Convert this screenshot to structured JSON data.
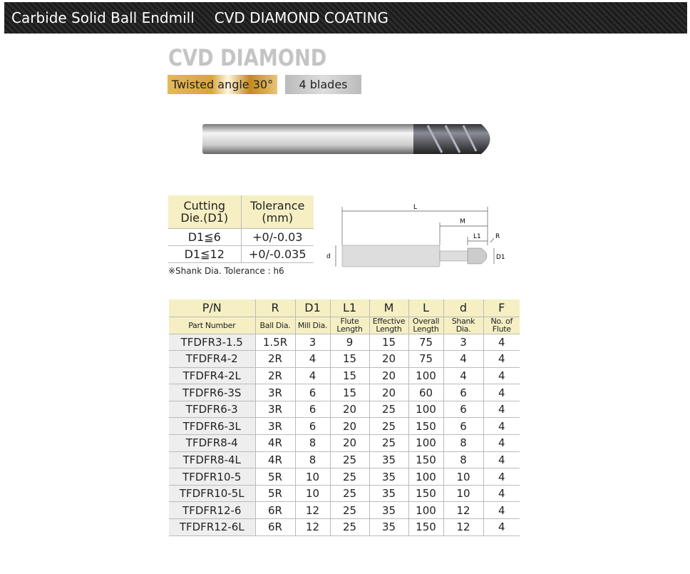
{
  "banner": {
    "title": "Carbide Solid Ball Endmill",
    "subtitle": "CVD DIAMOND COATING"
  },
  "brand": "CVD DIAMOND",
  "tags": {
    "angle": "Twisted angle 30°",
    "blades": "4 blades"
  },
  "tolerance_table": {
    "headers": [
      {
        "l1": "Cutting",
        "l2": "Die.(D1)"
      },
      {
        "l1": "Tolerance",
        "l2": "(mm)"
      }
    ],
    "rows": [
      [
        "D1≦6",
        "+0/-0.03"
      ],
      [
        "D1≦12",
        "+0/-0.035"
      ]
    ],
    "note": "※Shank Dia. Tolerance : h6"
  },
  "diagram": {
    "labels": {
      "L": "L",
      "M": "M",
      "L1": "L1",
      "R": "R",
      "d": "d",
      "D1": "D1"
    }
  },
  "colors": {
    "header_bg": "#f5efc3",
    "first_col_bg": "#eeeeee"
  },
  "spec_table": {
    "headers": [
      "P/N",
      "R",
      "D1",
      "L1",
      "M",
      "L",
      "d",
      "F"
    ],
    "subheaders": [
      "Part Number",
      "Ball Dia.",
      "Mill Dia.",
      "Flute Length",
      "Effective Length",
      "Overall Length",
      "Shank Dia.",
      "No. of Flute"
    ],
    "rows": [
      [
        "TFDFR3-1.5",
        "1.5R",
        "3",
        "9",
        "15",
        "75",
        "3",
        "4"
      ],
      [
        "TFDFR4-2",
        "2R",
        "4",
        "15",
        "20",
        "75",
        "4",
        "4"
      ],
      [
        "TFDFR4-2L",
        "2R",
        "4",
        "15",
        "20",
        "100",
        "4",
        "4"
      ],
      [
        "TFDFR6-3S",
        "3R",
        "6",
        "15",
        "20",
        "60",
        "6",
        "4"
      ],
      [
        "TFDFR6-3",
        "3R",
        "6",
        "20",
        "25",
        "100",
        "6",
        "4"
      ],
      [
        "TFDFR6-3L",
        "3R",
        "6",
        "20",
        "25",
        "150",
        "6",
        "4"
      ],
      [
        "TFDFR8-4",
        "4R",
        "8",
        "20",
        "25",
        "100",
        "8",
        "4"
      ],
      [
        "TFDFR8-4L",
        "4R",
        "8",
        "25",
        "35",
        "150",
        "8",
        "4"
      ],
      [
        "TFDFR10-5",
        "5R",
        "10",
        "25",
        "35",
        "100",
        "10",
        "4"
      ],
      [
        "TFDFR10-5L",
        "5R",
        "10",
        "25",
        "35",
        "150",
        "10",
        "4"
      ],
      [
        "TFDFR12-6",
        "6R",
        "12",
        "25",
        "35",
        "100",
        "12",
        "4"
      ],
      [
        "TFDFR12-6L",
        "6R",
        "12",
        "25",
        "35",
        "150",
        "12",
        "4"
      ]
    ]
  }
}
